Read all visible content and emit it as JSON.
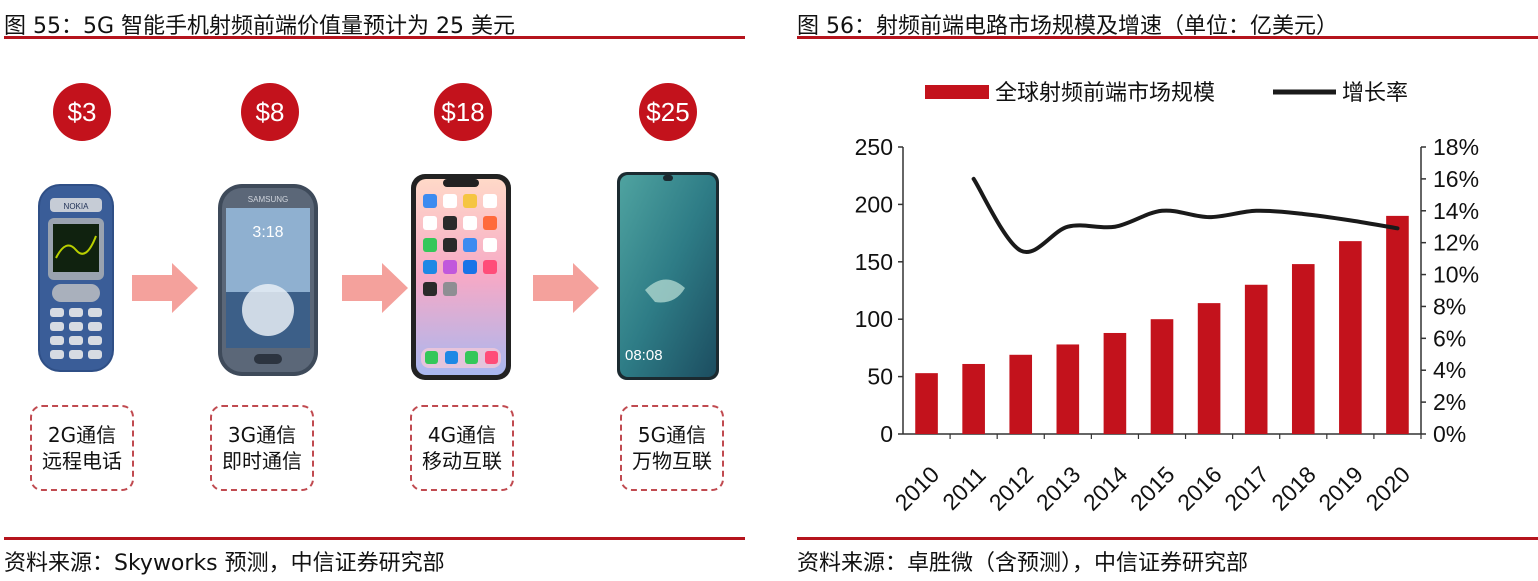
{
  "left": {
    "title": "图 55：5G 智能手机射频前端价值量预计为 25 美元",
    "source": "资料来源：Skyworks 预测，中信证券研究部",
    "phones": [
      {
        "price": "$3",
        "gen": "2G通信",
        "desc": "远程电话",
        "brand": "NOKIA"
      },
      {
        "price": "$8",
        "gen": "3G通信",
        "desc": "即时通信",
        "brand": "SAMSUNG",
        "clock": "3:18"
      },
      {
        "price": "$18",
        "gen": "4G通信",
        "desc": "移动互联"
      },
      {
        "price": "$25",
        "gen": "5G通信",
        "desc": "万物互联",
        "clock": "08:08"
      }
    ]
  },
  "right": {
    "title": "图 56：射频前端电路市场规模及增速（单位：亿美元）",
    "source": "资料来源：卓胜微（含预测），中信证券研究部"
  },
  "colors": {
    "accent": "#b5141d",
    "bar": "#c3121c",
    "line": "#1a1a1a"
  },
  "chart_data": {
    "type": "bar",
    "categories": [
      "2010",
      "2011",
      "2012",
      "2013",
      "2014",
      "2015",
      "2016",
      "2017",
      "2018",
      "2019",
      "2020"
    ],
    "series": [
      {
        "name": "全球射频前端市场规模",
        "type": "bar",
        "axis": "left",
        "values": [
          53,
          61,
          69,
          78,
          88,
          100,
          114,
          130,
          148,
          168,
          190
        ]
      },
      {
        "name": "增长率",
        "type": "line",
        "axis": "right",
        "values": [
          null,
          16.0,
          11.5,
          13.0,
          13.0,
          14.0,
          13.6,
          14.0,
          13.8,
          13.4,
          12.9
        ]
      }
    ],
    "ylim": [
      0,
      250
    ],
    "yticks": [
      "0",
      "50",
      "100",
      "150",
      "200",
      "250"
    ],
    "y2lim": [
      0,
      18
    ],
    "y2ticks": [
      "0%",
      "2%",
      "4%",
      "6%",
      "8%",
      "10%",
      "12%",
      "14%",
      "16%",
      "18%"
    ],
    "legend_position": "top"
  }
}
